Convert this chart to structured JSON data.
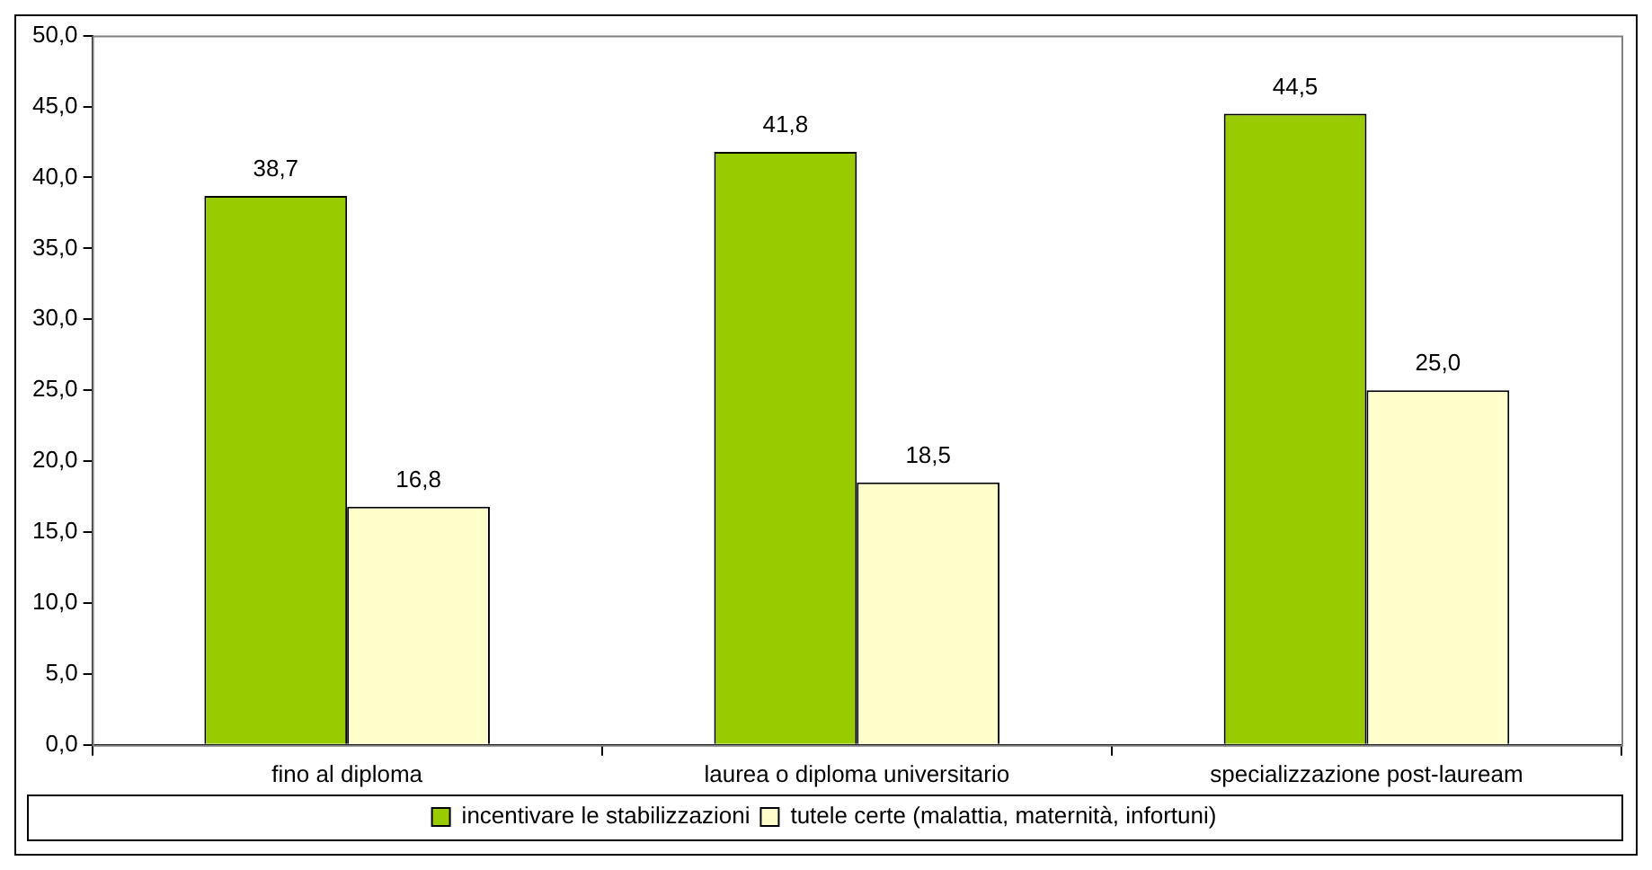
{
  "chart_data": {
    "type": "bar",
    "categories": [
      "fino al diploma",
      "laurea o diploma universitario",
      "specializzazione post-lauream"
    ],
    "series": [
      {
        "name": "incentivare le stabilizzazioni",
        "color": "#99cc00",
        "values": [
          38.7,
          41.8,
          44.5
        ],
        "value_labels": [
          "38,7",
          "41,8",
          "44,5"
        ]
      },
      {
        "name": "tutele certe (malattia, maternità, infortuni)",
        "color": "#ffffcc",
        "values": [
          16.8,
          18.5,
          25.0
        ],
        "value_labels": [
          "16,8",
          "18,5",
          "25,0"
        ]
      }
    ],
    "ylim": [
      0,
      50
    ],
    "yticks": [
      {
        "value": 0,
        "label": "0,0"
      },
      {
        "value": 5,
        "label": "5,0"
      },
      {
        "value": 10,
        "label": "10,0"
      },
      {
        "value": 15,
        "label": "15,0"
      },
      {
        "value": 20,
        "label": "20,0"
      },
      {
        "value": 25,
        "label": "25,0"
      },
      {
        "value": 30,
        "label": "30,0"
      },
      {
        "value": 35,
        "label": "35,0"
      },
      {
        "value": 40,
        "label": "40,0"
      },
      {
        "value": 45,
        "label": "45,0"
      },
      {
        "value": 50,
        "label": "50,0"
      }
    ],
    "grid": false,
    "legend": "bottom"
  }
}
